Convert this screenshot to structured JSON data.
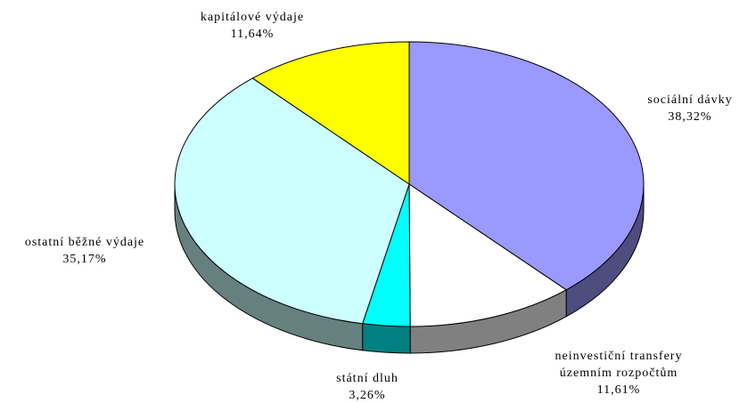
{
  "chart_data": {
    "type": "pie3d",
    "categories": [
      "sociální dávky",
      "neinvestiční transfery územním rozpočtům",
      "státní dluh",
      "ostatní běžné výdaje",
      "kapitálové výdaje"
    ],
    "values": [
      38.32,
      11.61,
      3.26,
      35.17,
      11.64
    ],
    "value_labels": [
      "38,32%",
      "11,61%",
      "3,26%",
      "35,17%",
      "11,64%"
    ],
    "colors": [
      "#9999ff",
      "#ffffff",
      "#00ffff",
      "#ccffff",
      "#ffff00"
    ]
  }
}
